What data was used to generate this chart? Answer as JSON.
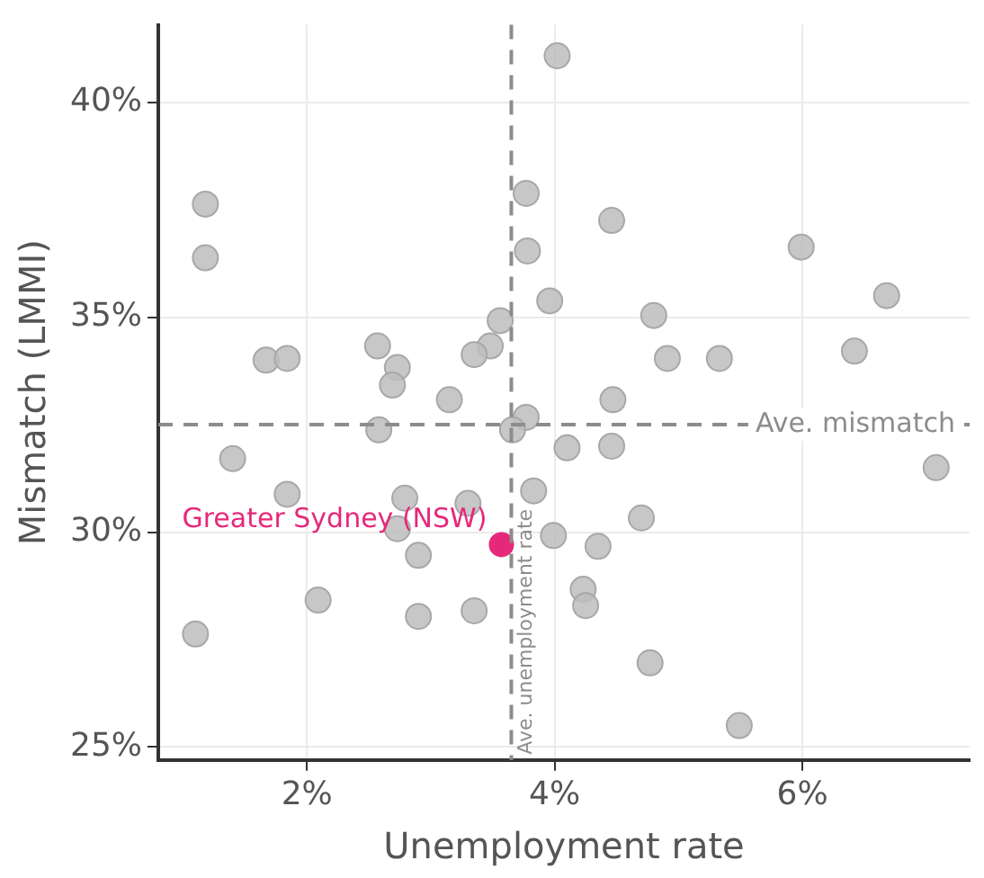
{
  "chart_data": {
    "type": "scatter",
    "xlabel": "Unemployment rate",
    "ylabel": "Mismatch (LMMI)",
    "xlim": [
      0.8,
      7.35
    ],
    "ylim": [
      24.7,
      41.8
    ],
    "xticks": [
      {
        "value": 2,
        "label": "2%"
      },
      {
        "value": 4,
        "label": "4%"
      },
      {
        "value": 6,
        "label": "6%"
      }
    ],
    "yticks": [
      {
        "value": 25,
        "label": "25%"
      },
      {
        "value": 30,
        "label": "30%"
      },
      {
        "value": 35,
        "label": "35%"
      },
      {
        "value": 40,
        "label": "40%"
      }
    ],
    "grid": true,
    "legend": false,
    "marker": "circle",
    "ref_lines": [
      {
        "axis": "y",
        "value": 32.5,
        "label": "Ave. mismatch",
        "color": "#8c8c8c",
        "line_style": "dashed"
      },
      {
        "axis": "x",
        "value": 3.65,
        "label": "Ave. unemployment rate",
        "color": "#8c8c8c",
        "line_style": "dashed"
      }
    ],
    "series": [
      {
        "color": "#bdbdbd",
        "x": [
          4.02,
          3.77,
          3.78,
          1.18,
          1.18,
          5.99,
          6.68,
          4.46,
          3.96,
          3.56,
          4.8,
          3.48,
          2.57,
          3.35,
          2.73,
          1.67,
          1.84,
          4.91,
          5.33,
          6.42,
          2.69,
          3.15,
          4.47,
          2.58,
          3.77,
          3.66,
          4.1,
          4.46,
          7.08,
          1.4,
          3.83,
          1.84,
          2.79,
          2.73,
          3.3,
          4.7,
          3.99,
          4.35,
          2.9,
          4.23,
          4.25,
          2.09,
          2.9,
          3.35,
          1.1,
          4.77,
          5.49
        ],
        "values": [
          41.08,
          37.88,
          36.54,
          37.63,
          36.38,
          36.63,
          35.5,
          37.25,
          35.38,
          34.92,
          35.04,
          34.33,
          34.33,
          34.13,
          33.83,
          34.0,
          34.04,
          34.04,
          34.04,
          34.21,
          33.42,
          33.08,
          33.08,
          32.38,
          32.67,
          32.38,
          31.96,
          32.0,
          31.5,
          31.71,
          30.96,
          30.88,
          30.79,
          30.08,
          30.67,
          30.33,
          29.92,
          29.67,
          29.46,
          28.67,
          28.29,
          28.42,
          28.04,
          28.17,
          27.63,
          26.96,
          25.5
        ]
      },
      {
        "name": "Greater Sydney (NSW)",
        "color": "#e6287a",
        "x": [
          3.57
        ],
        "values": [
          29.71
        ]
      }
    ]
  }
}
